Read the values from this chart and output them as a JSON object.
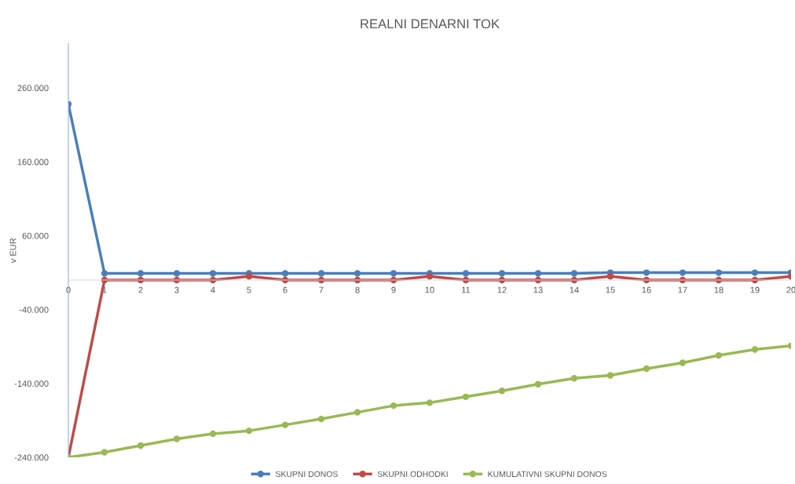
{
  "chart_data": {
    "type": "line",
    "title": "REALNI DENARNI TOK",
    "ylabel": "v EUR",
    "categories": [
      "0",
      "1",
      "2",
      "3",
      "4",
      "5",
      "6",
      "7",
      "8",
      "9",
      "10",
      "11",
      "12",
      "13",
      "14",
      "15",
      "16",
      "17",
      "18",
      "19",
      "20"
    ],
    "series": [
      {
        "name": "SKUPNI DONOS",
        "color": "#4a7ebb",
        "values": [
          238000,
          9000,
          9000,
          9000,
          9000,
          9000,
          9000,
          9000,
          9000,
          9000,
          9000,
          9000,
          9000,
          9000,
          9000,
          10000,
          10000,
          10000,
          10000,
          10000,
          10000
        ]
      },
      {
        "name": "SKUPNI ODHODKI",
        "color": "#be4b48",
        "values": [
          -240000,
          0,
          0,
          0,
          0,
          5000,
          0,
          0,
          0,
          0,
          5000,
          0,
          0,
          0,
          0,
          5000,
          0,
          0,
          0,
          0,
          5000
        ]
      },
      {
        "name": "KUMULATIVNI SKUPNI DONOS",
        "color": "#98b954",
        "values": [
          -240000,
          -233000,
          -224000,
          -215000,
          -208000,
          -204000,
          -196000,
          -188000,
          -179000,
          -170000,
          -166000,
          -158000,
          -150000,
          -141000,
          -133000,
          -129000,
          -120000,
          -112000,
          -102000,
          -94000,
          -89000
        ]
      }
    ],
    "ylim": [
      -240000,
      320000
    ],
    "yticks": [
      {
        "value": -240000,
        "label": "-240.000"
      },
      {
        "value": -140000,
        "label": "-140.000"
      },
      {
        "value": -40000,
        "label": "-40.000"
      },
      {
        "value": 60000,
        "label": "60.000"
      },
      {
        "value": 160000,
        "label": "160.000"
      },
      {
        "value": 260000,
        "label": "260.000"
      }
    ],
    "marker": "circle",
    "line_style": "solid",
    "grid": false,
    "legend": "bottom"
  }
}
